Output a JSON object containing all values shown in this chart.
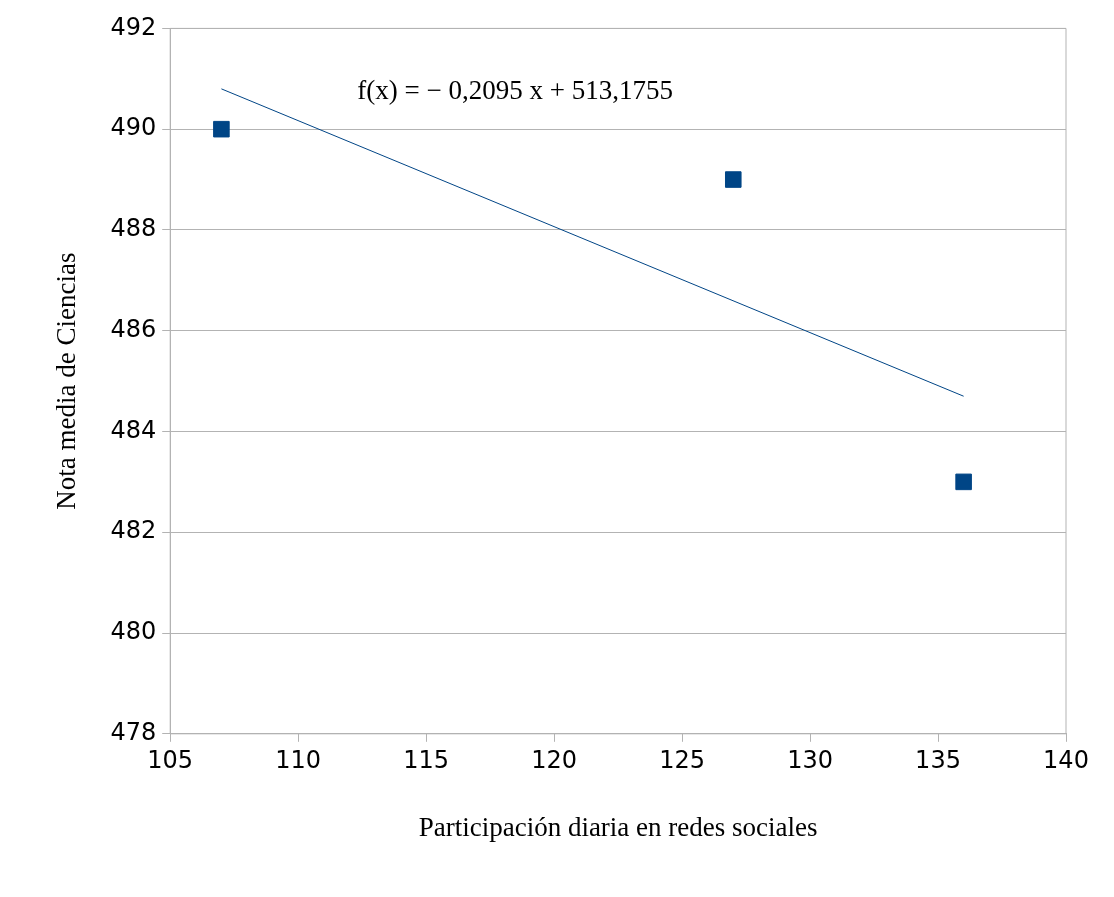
{
  "chart_data": {
    "type": "scatter",
    "xlabel": "Participación diaria en redes sociales",
    "ylabel": "Nota media de Ciencias",
    "series": [
      {
        "color": "#004586",
        "x": [
          107,
          127,
          136
        ],
        "values": [
          490,
          489,
          483
        ],
        "marker": "square"
      },
      {
        "type": "line",
        "color": "#004586",
        "x": [
          107,
          136
        ],
        "values": [
          490.8,
          484.7
        ],
        "marker": "none"
      }
    ],
    "xlim": [
      105,
      140
    ],
    "xticks": [
      105,
      110,
      115,
      120,
      125,
      130,
      135,
      140
    ],
    "ylim": [
      478,
      492
    ],
    "yticks": [
      478,
      480,
      482,
      484,
      486,
      488,
      490,
      492
    ],
    "grid": "y",
    "legend": false,
    "annotations": [
      "f(x) = − 0,2095 x + 513,1755"
    ]
  }
}
